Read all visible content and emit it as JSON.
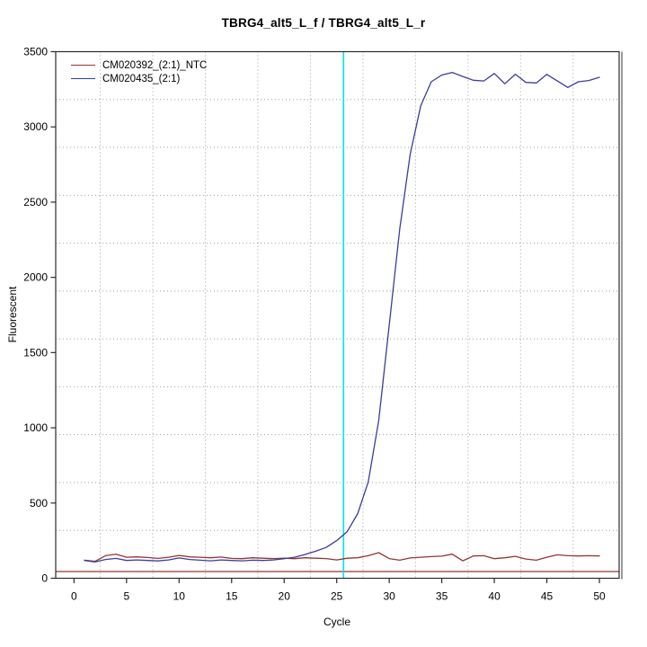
{
  "chart": {
    "background": "#ffffff",
    "grid_color": "#9e9e9e",
    "box_color": "#2b2b2b",
    "box_shadow_color": "#9a9a9a",
    "text_color": "#000000"
  },
  "chart_data": {
    "type": "line",
    "title": "TBRG4_alt5_L_f / TBRG4_alt5_L_r",
    "xlabel": "Cycle",
    "ylabel": "Fluorescent",
    "xlim": [
      -1.74,
      51.88
    ],
    "ylim": [
      0,
      3500
    ],
    "x_ticks": [
      0,
      5,
      10,
      15,
      20,
      25,
      30,
      35,
      40,
      45,
      50
    ],
    "y_ticks": [
      0,
      500,
      1000,
      1500,
      2000,
      2500,
      3000,
      3500
    ],
    "grid": "dotted",
    "x_gridlines": [
      2.5,
      7.5,
      12.5,
      17.5,
      22.5,
      27.5,
      32.5,
      37.5,
      42.5,
      47.5
    ],
    "y_gridlines": [
      318,
      636,
      955,
      1273,
      1591,
      1909,
      2227,
      2545,
      2864,
      3182
    ],
    "legend_position": "top-left",
    "threshold_line": {
      "axis": "y",
      "value": 45,
      "color": "#993333"
    },
    "ct_line": {
      "axis": "x",
      "value": 25.65,
      "color": "#00e6e6"
    },
    "x": [
      1,
      2,
      3,
      4,
      5,
      6,
      7,
      8,
      9,
      10,
      11,
      12,
      13,
      14,
      15,
      16,
      17,
      18,
      19,
      20,
      21,
      22,
      23,
      24,
      25,
      26,
      27,
      28,
      29,
      30,
      31,
      32,
      33,
      34,
      35,
      36,
      37,
      38,
      39,
      40,
      41,
      42,
      43,
      44,
      45,
      46,
      47,
      48,
      49,
      50
    ],
    "series": [
      {
        "name": "CM020392_(2:1)_NTC",
        "color": "#993333",
        "values": [
          120,
          112,
          150,
          160,
          140,
          142,
          138,
          132,
          140,
          152,
          142,
          140,
          136,
          141,
          132,
          130,
          136,
          133,
          131,
          133,
          130,
          136,
          133,
          131,
          122,
          133,
          136,
          150,
          170,
          131,
          120,
          135,
          140,
          144,
          147,
          160,
          116,
          148,
          150,
          130,
          136,
          146,
          128,
          120,
          140,
          156,
          150,
          148,
          150,
          148
        ]
      },
      {
        "name": "CM020435_(2:1)",
        "color": "#3c3c9e",
        "values": [
          118,
          108,
          125,
          132,
          118,
          122,
          118,
          115,
          122,
          135,
          125,
          120,
          116,
          122,
          118,
          116,
          120,
          118,
          122,
          130,
          140,
          158,
          180,
          205,
          250,
          310,
          430,
          640,
          1050,
          1680,
          2320,
          2820,
          3140,
          3300,
          3345,
          3362,
          3335,
          3310,
          3305,
          3355,
          3287,
          3350,
          3296,
          3292,
          3349,
          3305,
          3262,
          3300,
          3308,
          3330
        ]
      }
    ]
  }
}
